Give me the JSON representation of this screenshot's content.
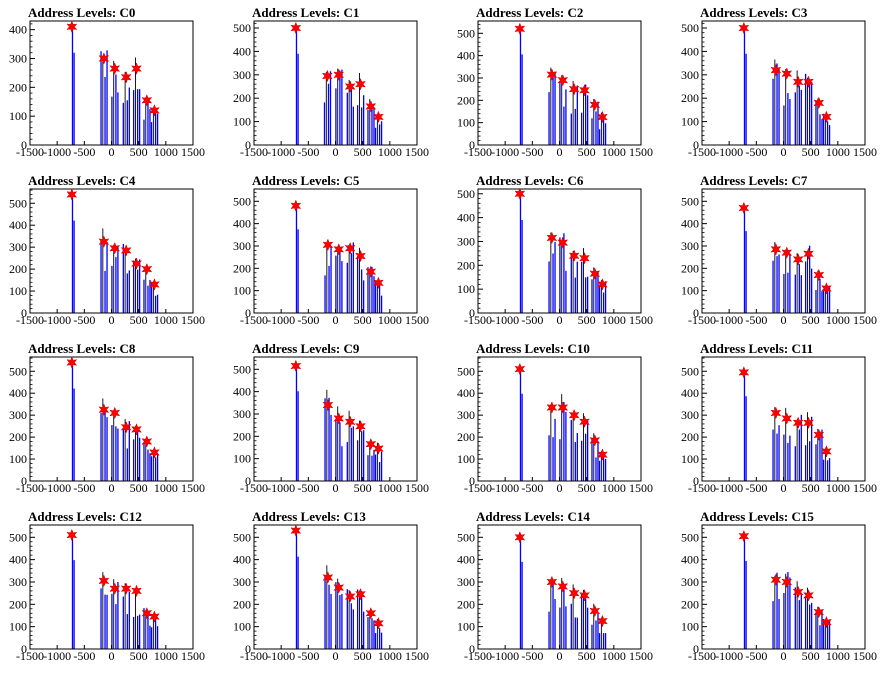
{
  "colors": {
    "spectrum": "#0000ff",
    "raw": "#000000",
    "marker": "#ff0000",
    "frame": "#000000"
  },
  "chart_data": [
    {
      "type": "bar",
      "title": "Address Levels: C0",
      "xlim": [
        -1500,
        1500
      ],
      "xticks": [
        -1500,
        -1000,
        -500,
        0,
        500,
        1000,
        1500
      ],
      "ylim": [
        0,
        430
      ],
      "yticks": [
        0,
        100,
        200,
        300,
        400
      ],
      "peaks": [
        {
          "x": -730,
          "y": 410
        },
        {
          "x": -140,
          "y": 300
        },
        {
          "x": 60,
          "y": 265
        },
        {
          "x": 270,
          "y": 235
        },
        {
          "x": 460,
          "y": 265
        },
        {
          "x": 650,
          "y": 155
        },
        {
          "x": 790,
          "y": 120
        }
      ]
    },
    {
      "type": "bar",
      "title": "Address Levels: C1",
      "xlim": [
        -1500,
        1500
      ],
      "xticks": [
        -1500,
        -1000,
        -500,
        0,
        500,
        1000,
        1500
      ],
      "ylim": [
        0,
        530
      ],
      "yticks": [
        0,
        100,
        200,
        300,
        400,
        500
      ],
      "peaks": [
        {
          "x": -730,
          "y": 500
        },
        {
          "x": -150,
          "y": 295
        },
        {
          "x": 60,
          "y": 300
        },
        {
          "x": 270,
          "y": 250
        },
        {
          "x": 460,
          "y": 260
        },
        {
          "x": 650,
          "y": 165
        },
        {
          "x": 790,
          "y": 120
        }
      ]
    },
    {
      "type": "bar",
      "title": "Address Levels: C2",
      "xlim": [
        -1500,
        1500
      ],
      "xticks": [
        -1500,
        -1000,
        -500,
        0,
        500,
        1000,
        1500
      ],
      "ylim": [
        0,
        555
      ],
      "yticks": [
        0,
        100,
        200,
        300,
        400,
        500
      ],
      "peaks": [
        {
          "x": -730,
          "y": 520
        },
        {
          "x": -140,
          "y": 315
        },
        {
          "x": 60,
          "y": 290
        },
        {
          "x": 270,
          "y": 250
        },
        {
          "x": 460,
          "y": 245
        },
        {
          "x": 650,
          "y": 180
        },
        {
          "x": 790,
          "y": 125
        }
      ]
    },
    {
      "type": "bar",
      "title": "Address Levels: C3",
      "xlim": [
        -1500,
        1500
      ],
      "xticks": [
        -1500,
        -1000,
        -500,
        0,
        500,
        1000,
        1500
      ],
      "ylim": [
        0,
        530
      ],
      "yticks": [
        0,
        100,
        200,
        300,
        400,
        500
      ],
      "peaks": [
        {
          "x": -730,
          "y": 500
        },
        {
          "x": -140,
          "y": 320
        },
        {
          "x": 60,
          "y": 305
        },
        {
          "x": 270,
          "y": 270
        },
        {
          "x": 460,
          "y": 270
        },
        {
          "x": 650,
          "y": 180
        },
        {
          "x": 790,
          "y": 120
        }
      ]
    },
    {
      "type": "bar",
      "title": "Address Levels: C4",
      "xlim": [
        -1500,
        1500
      ],
      "xticks": [
        -1500,
        -1000,
        -500,
        0,
        500,
        1000,
        1500
      ],
      "ylim": [
        0,
        565
      ],
      "yticks": [
        0,
        100,
        200,
        300,
        400,
        500
      ],
      "peaks": [
        {
          "x": -730,
          "y": 540
        },
        {
          "x": -140,
          "y": 325
        },
        {
          "x": 60,
          "y": 295
        },
        {
          "x": 270,
          "y": 285
        },
        {
          "x": 460,
          "y": 225
        },
        {
          "x": 650,
          "y": 200
        },
        {
          "x": 790,
          "y": 130
        }
      ]
    },
    {
      "type": "bar",
      "title": "Address Levels: C5",
      "xlim": [
        -1500,
        1500
      ],
      "xticks": [
        -1500,
        -1000,
        -500,
        0,
        500,
        1000,
        1500
      ],
      "ylim": [
        0,
        555
      ],
      "yticks": [
        0,
        100,
        200,
        300,
        400,
        500
      ],
      "peaks": [
        {
          "x": -730,
          "y": 480
        },
        {
          "x": -140,
          "y": 305
        },
        {
          "x": 60,
          "y": 285
        },
        {
          "x": 270,
          "y": 290
        },
        {
          "x": 460,
          "y": 255
        },
        {
          "x": 650,
          "y": 185
        },
        {
          "x": 790,
          "y": 135
        }
      ]
    },
    {
      "type": "bar",
      "title": "Address Levels: C6",
      "xlim": [
        -1500,
        1500
      ],
      "xticks": [
        -1500,
        -1000,
        -500,
        0,
        500,
        1000,
        1500
      ],
      "ylim": [
        0,
        520
      ],
      "yticks": [
        0,
        100,
        200,
        300,
        400,
        500
      ],
      "peaks": [
        {
          "x": -730,
          "y": 500
        },
        {
          "x": -140,
          "y": 315
        },
        {
          "x": 60,
          "y": 295
        },
        {
          "x": 270,
          "y": 240
        },
        {
          "x": 460,
          "y": 230
        },
        {
          "x": 650,
          "y": 165
        },
        {
          "x": 790,
          "y": 120
        }
      ]
    },
    {
      "type": "bar",
      "title": "Address Levels: C7",
      "xlim": [
        -1500,
        1500
      ],
      "xticks": [
        -1500,
        -1000,
        -500,
        0,
        500,
        1000,
        1500
      ],
      "ylim": [
        0,
        555
      ],
      "yticks": [
        0,
        100,
        200,
        300,
        400,
        500
      ],
      "peaks": [
        {
          "x": -730,
          "y": 470
        },
        {
          "x": -140,
          "y": 285
        },
        {
          "x": 60,
          "y": 270
        },
        {
          "x": 270,
          "y": 240
        },
        {
          "x": 460,
          "y": 265
        },
        {
          "x": 650,
          "y": 170
        },
        {
          "x": 790,
          "y": 110
        }
      ]
    },
    {
      "type": "bar",
      "title": "Address Levels: C8",
      "xlim": [
        -1500,
        1500
      ],
      "xticks": [
        -1500,
        -1000,
        -500,
        0,
        500,
        1000,
        1500
      ],
      "ylim": [
        0,
        565
      ],
      "yticks": [
        0,
        100,
        200,
        300,
        400,
        500
      ],
      "peaks": [
        {
          "x": -730,
          "y": 540
        },
        {
          "x": -140,
          "y": 325
        },
        {
          "x": 60,
          "y": 310
        },
        {
          "x": 270,
          "y": 245
        },
        {
          "x": 460,
          "y": 235
        },
        {
          "x": 650,
          "y": 180
        },
        {
          "x": 790,
          "y": 130
        }
      ]
    },
    {
      "type": "bar",
      "title": "Address Levels: C9",
      "xlim": [
        -1500,
        1500
      ],
      "xticks": [
        -1500,
        -1000,
        -500,
        0,
        500,
        1000,
        1500
      ],
      "ylim": [
        0,
        555
      ],
      "yticks": [
        0,
        100,
        200,
        300,
        400,
        500
      ],
      "peaks": [
        {
          "x": -730,
          "y": 515
        },
        {
          "x": -140,
          "y": 340
        },
        {
          "x": 60,
          "y": 280
        },
        {
          "x": 270,
          "y": 265
        },
        {
          "x": 460,
          "y": 245
        },
        {
          "x": 650,
          "y": 165
        },
        {
          "x": 790,
          "y": 145
        }
      ]
    },
    {
      "type": "bar",
      "title": "Address Levels: C10",
      "xlim": [
        -1500,
        1500
      ],
      "xticks": [
        -1500,
        -1000,
        -500,
        0,
        500,
        1000,
        1500
      ],
      "ylim": [
        0,
        565
      ],
      "yticks": [
        0,
        100,
        200,
        300,
        400,
        500
      ],
      "peaks": [
        {
          "x": -730,
          "y": 510
        },
        {
          "x": -140,
          "y": 335
        },
        {
          "x": 60,
          "y": 335
        },
        {
          "x": 270,
          "y": 300
        },
        {
          "x": 460,
          "y": 270
        },
        {
          "x": 650,
          "y": 185
        },
        {
          "x": 790,
          "y": 120
        }
      ]
    },
    {
      "type": "bar",
      "title": "Address Levels: C11",
      "xlim": [
        -1500,
        1500
      ],
      "xticks": [
        -1500,
        -1000,
        -500,
        0,
        500,
        1000,
        1500
      ],
      "ylim": [
        0,
        565
      ],
      "yticks": [
        0,
        100,
        200,
        300,
        400,
        500
      ],
      "peaks": [
        {
          "x": -730,
          "y": 495
        },
        {
          "x": -140,
          "y": 310
        },
        {
          "x": 60,
          "y": 285
        },
        {
          "x": 270,
          "y": 265
        },
        {
          "x": 460,
          "y": 265
        },
        {
          "x": 650,
          "y": 210
        },
        {
          "x": 790,
          "y": 135
        }
      ]
    },
    {
      "type": "bar",
      "title": "Address Levels: C12",
      "xlim": [
        -1500,
        1500
      ],
      "xticks": [
        -1500,
        -1000,
        -500,
        0,
        500,
        1000,
        1500
      ],
      "ylim": [
        0,
        555
      ],
      "yticks": [
        0,
        100,
        200,
        300,
        400,
        500
      ],
      "peaks": [
        {
          "x": -730,
          "y": 510
        },
        {
          "x": -140,
          "y": 305
        },
        {
          "x": 60,
          "y": 270
        },
        {
          "x": 270,
          "y": 270
        },
        {
          "x": 460,
          "y": 260
        },
        {
          "x": 650,
          "y": 160
        },
        {
          "x": 790,
          "y": 145
        }
      ]
    },
    {
      "type": "bar",
      "title": "Address Levels: C13",
      "xlim": [
        -1500,
        1500
      ],
      "xticks": [
        -1500,
        -1000,
        -500,
        0,
        500,
        1000,
        1500
      ],
      "ylim": [
        0,
        555
      ],
      "yticks": [
        0,
        100,
        200,
        300,
        400,
        500
      ],
      "peaks": [
        {
          "x": -730,
          "y": 530
        },
        {
          "x": -140,
          "y": 320
        },
        {
          "x": 60,
          "y": 275
        },
        {
          "x": 270,
          "y": 235
        },
        {
          "x": 460,
          "y": 245
        },
        {
          "x": 650,
          "y": 160
        },
        {
          "x": 790,
          "y": 115
        }
      ]
    },
    {
      "type": "bar",
      "title": "Address Levels: C14",
      "xlim": [
        -1500,
        1500
      ],
      "xticks": [
        -1500,
        -1000,
        -500,
        0,
        500,
        1000,
        1500
      ],
      "ylim": [
        0,
        555
      ],
      "yticks": [
        0,
        100,
        200,
        300,
        400,
        500
      ],
      "peaks": [
        {
          "x": -730,
          "y": 500
        },
        {
          "x": -140,
          "y": 300
        },
        {
          "x": 60,
          "y": 280
        },
        {
          "x": 270,
          "y": 250
        },
        {
          "x": 460,
          "y": 240
        },
        {
          "x": 650,
          "y": 170
        },
        {
          "x": 790,
          "y": 125
        }
      ]
    },
    {
      "type": "bar",
      "title": "Address Levels: C15",
      "xlim": [
        -1500,
        1500
      ],
      "xticks": [
        -1500,
        -1000,
        -500,
        0,
        500,
        1000,
        1500
      ],
      "ylim": [
        0,
        555
      ],
      "yticks": [
        0,
        100,
        200,
        300,
        400,
        500
      ],
      "peaks": [
        {
          "x": -730,
          "y": 505
        },
        {
          "x": -140,
          "y": 310
        },
        {
          "x": 60,
          "y": 300
        },
        {
          "x": 270,
          "y": 255
        },
        {
          "x": 460,
          "y": 240
        },
        {
          "x": 650,
          "y": 165
        },
        {
          "x": 790,
          "y": 120
        }
      ]
    }
  ]
}
